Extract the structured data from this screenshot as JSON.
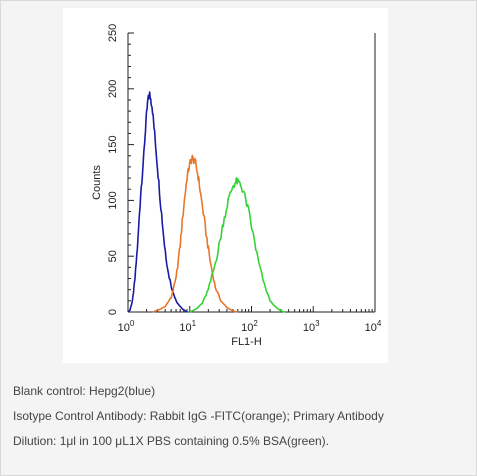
{
  "chart_data": {
    "type": "line",
    "xlabel": "FL1-H",
    "ylabel": "Counts",
    "x_scale": "log",
    "xlim": [
      1,
      10000
    ],
    "ylim": [
      0,
      250
    ],
    "x_ticks": [
      {
        "base": "10",
        "exp": "0"
      },
      {
        "base": "10",
        "exp": "1"
      },
      {
        "base": "10",
        "exp": "2"
      },
      {
        "base": "10",
        "exp": "3"
      },
      {
        "base": "10",
        "exp": "4"
      }
    ],
    "y_ticks": [
      "0",
      "50",
      "100",
      "150",
      "200",
      "250"
    ],
    "grid": false,
    "series": [
      {
        "color": "#1a1aa6",
        "points": [
          [
            1.02,
            0
          ],
          [
            1.08,
            2
          ],
          [
            1.18,
            10
          ],
          [
            1.3,
            30
          ],
          [
            1.45,
            65
          ],
          [
            1.6,
            105
          ],
          [
            1.8,
            140
          ],
          [
            1.95,
            170
          ],
          [
            2.1,
            190
          ],
          [
            2.25,
            195
          ],
          [
            2.45,
            185
          ],
          [
            2.7,
            160
          ],
          [
            3.0,
            130
          ],
          [
            3.4,
            95
          ],
          [
            3.9,
            60
          ],
          [
            4.5,
            35
          ],
          [
            5.3,
            18
          ],
          [
            6.3,
            8
          ],
          [
            7.5,
            3
          ],
          [
            9.0,
            0
          ]
        ]
      },
      {
        "color": "#e8762b",
        "points": [
          [
            2.5,
            0
          ],
          [
            3.2,
            2
          ],
          [
            4.0,
            5
          ],
          [
            5.0,
            13
          ],
          [
            6.0,
            30
          ],
          [
            7.0,
            60
          ],
          [
            8.0,
            95
          ],
          [
            9.0,
            120
          ],
          [
            10.0,
            133
          ],
          [
            11.0,
            138
          ],
          [
            12.5,
            133
          ],
          [
            14.0,
            118
          ],
          [
            16.0,
            95
          ],
          [
            19.0,
            65
          ],
          [
            22.0,
            42
          ],
          [
            26.0,
            22
          ],
          [
            32.0,
            10
          ],
          [
            40.0,
            4
          ],
          [
            50.0,
            1
          ],
          [
            60.0,
            0
          ]
        ]
      },
      {
        "color": "#35d335",
        "points": [
          [
            10,
            0
          ],
          [
            13,
            3
          ],
          [
            16,
            8
          ],
          [
            20,
            20
          ],
          [
            25,
            40
          ],
          [
            30,
            60
          ],
          [
            35,
            80
          ],
          [
            42,
            100
          ],
          [
            50,
            113
          ],
          [
            57,
            117
          ],
          [
            65,
            115
          ],
          [
            75,
            107
          ],
          [
            90,
            90
          ],
          [
            110,
            65
          ],
          [
            130,
            45
          ],
          [
            160,
            25
          ],
          [
            200,
            10
          ],
          [
            250,
            4
          ],
          [
            300,
            1
          ],
          [
            350,
            0
          ]
        ]
      }
    ]
  },
  "caption": {
    "line1": "Blank control: Hepg2(blue)",
    "line2": "Isotype Control Antibody: Rabbit IgG -FITC(orange); Primary Antibody",
    "line3": "Dilution: 1μl in 100 μL1X PBS containing 0.5% BSA(green)."
  }
}
